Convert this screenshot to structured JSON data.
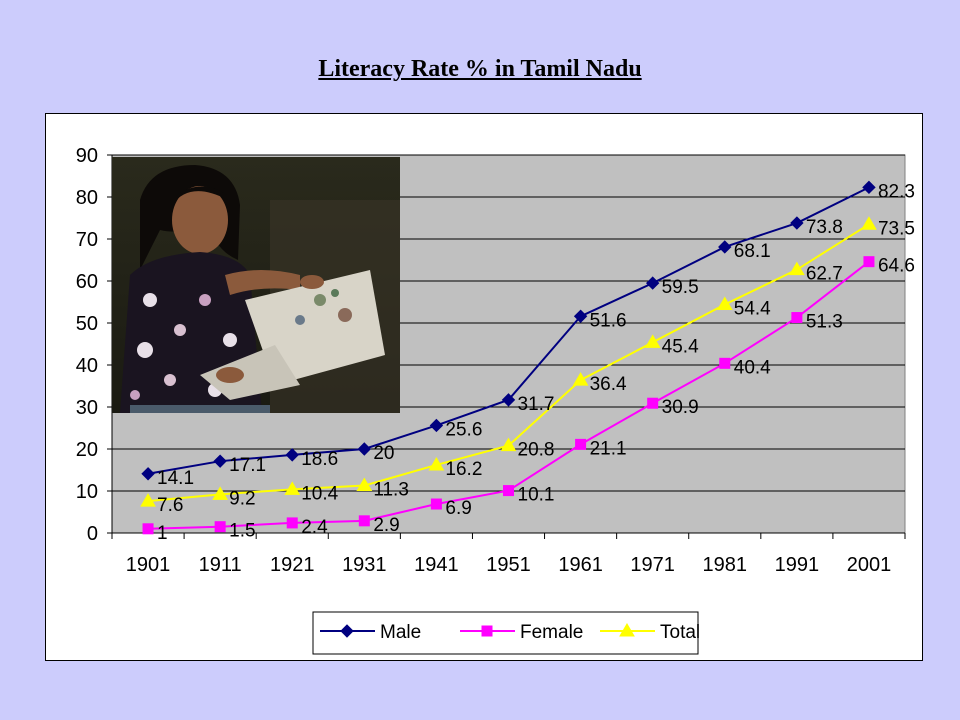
{
  "title": "Literacy Rate % in Tamil Nadu",
  "chart_data": {
    "type": "line",
    "title": "Literacy Rate % in Tamil Nadu",
    "categories": [
      "1901",
      "1911",
      "1921",
      "1931",
      "1941",
      "1951",
      "1961",
      "1971",
      "1981",
      "1991",
      "2001"
    ],
    "ylim": [
      0,
      90
    ],
    "yticks": [
      0,
      10,
      20,
      30,
      40,
      50,
      60,
      70,
      80,
      90
    ],
    "grid": true,
    "legend_position": "bottom",
    "series": [
      {
        "name": "Male",
        "color": "#000080",
        "marker": "diamond",
        "values": [
          14.1,
          17.1,
          18.6,
          20,
          25.6,
          31.7,
          51.6,
          59.5,
          68.1,
          73.8,
          82.3
        ]
      },
      {
        "name": "Female",
        "color": "#ff00ff",
        "marker": "square",
        "values": [
          1,
          1.5,
          2.4,
          2.9,
          6.9,
          10.1,
          21.1,
          30.9,
          40.4,
          51.3,
          64.6
        ]
      },
      {
        "name": "Total",
        "color": "#ffff00",
        "marker": "triangle",
        "values": [
          7.6,
          9.2,
          10.4,
          11.3,
          16.2,
          20.8,
          36.4,
          45.4,
          54.4,
          62.7,
          73.5
        ]
      }
    ]
  },
  "photo": {
    "description_icon": "girl-reading-photo"
  }
}
